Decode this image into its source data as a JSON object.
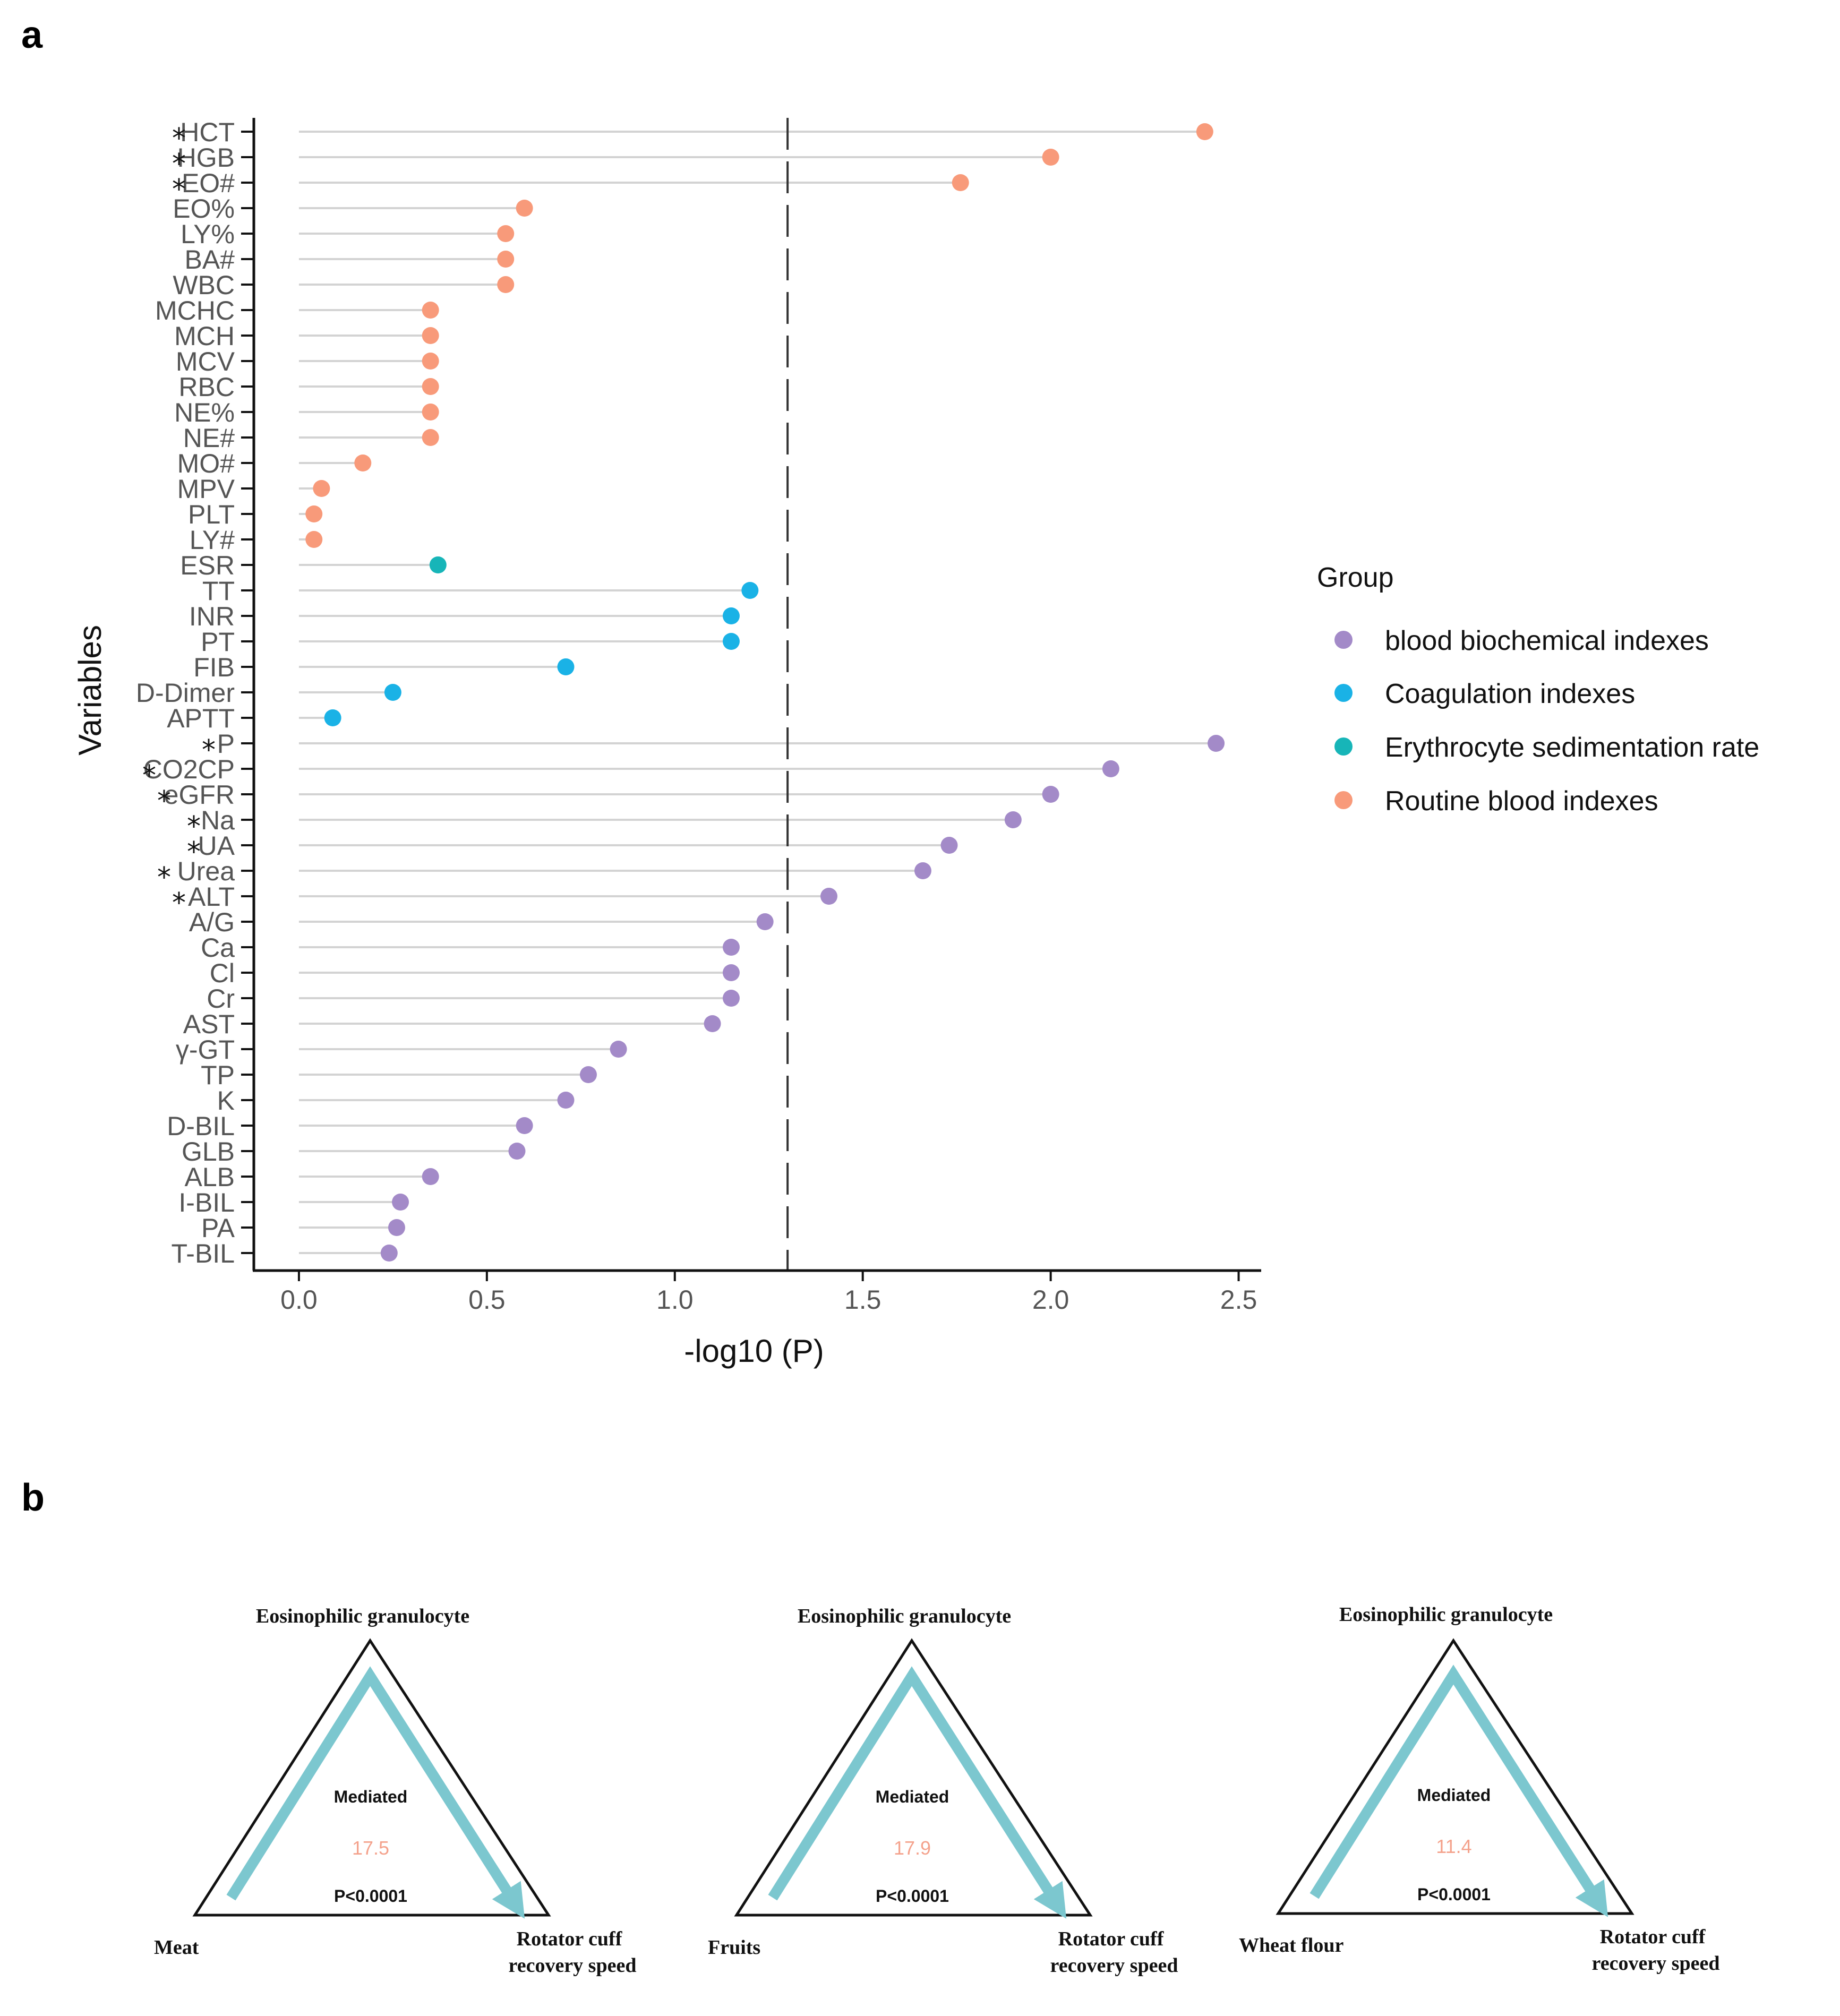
{
  "panels": {
    "a": "a",
    "b": "b"
  },
  "chart_data": {
    "type": "scatter",
    "subtype": "lollipop",
    "xlabel": "-log10 (P)",
    "ylabel": "Variables",
    "xlim": [
      -0.12,
      2.56
    ],
    "xticks": [
      0.0,
      0.5,
      1.0,
      1.5,
      2.0,
      2.5
    ],
    "xtick_labels": [
      "0.0",
      "0.5",
      "1.0",
      "1.5",
      "2.0",
      "2.5"
    ],
    "threshold": 1.3,
    "legend": {
      "title": "Group",
      "placement": "right",
      "entries": [
        {
          "name": "blood biochemical indexes",
          "color": "#a38ac8"
        },
        {
          "name": "Coagulation indexes",
          "color": "#1ab2e6"
        },
        {
          "name": "Erythrocyte sedimentation rate",
          "color": "#17b5b8"
        },
        {
          "name": "Routine blood indexes",
          "color": "#f89a7a"
        }
      ]
    },
    "points": [
      {
        "label": "HCT",
        "value": 2.41,
        "group": "Routine blood indexes",
        "star": true
      },
      {
        "label": "HGB",
        "value": 2.0,
        "group": "Routine blood indexes",
        "star": true
      },
      {
        "label": "EO#",
        "value": 1.76,
        "group": "Routine blood indexes",
        "star": true
      },
      {
        "label": "EO%",
        "value": 0.6,
        "group": "Routine blood indexes",
        "star": false
      },
      {
        "label": "LY%",
        "value": 0.55,
        "group": "Routine blood indexes",
        "star": false
      },
      {
        "label": "BA#",
        "value": 0.55,
        "group": "Routine blood indexes",
        "star": false
      },
      {
        "label": "WBC",
        "value": 0.55,
        "group": "Routine blood indexes",
        "star": false
      },
      {
        "label": "MCHC",
        "value": 0.35,
        "group": "Routine blood indexes",
        "star": false
      },
      {
        "label": "MCH",
        "value": 0.35,
        "group": "Routine blood indexes",
        "star": false
      },
      {
        "label": "MCV",
        "value": 0.35,
        "group": "Routine blood indexes",
        "star": false
      },
      {
        "label": "RBC",
        "value": 0.35,
        "group": "Routine blood indexes",
        "star": false
      },
      {
        "label": "NE%",
        "value": 0.35,
        "group": "Routine blood indexes",
        "star": false
      },
      {
        "label": "NE#",
        "value": 0.35,
        "group": "Routine blood indexes",
        "star": false
      },
      {
        "label": "MO#",
        "value": 0.17,
        "group": "Routine blood indexes",
        "star": false
      },
      {
        "label": "MPV",
        "value": 0.06,
        "group": "Routine blood indexes",
        "star": false
      },
      {
        "label": "PLT",
        "value": 0.04,
        "group": "Routine blood indexes",
        "star": false
      },
      {
        "label": "LY#",
        "value": 0.04,
        "group": "Routine blood indexes",
        "star": false
      },
      {
        "label": "ESR",
        "value": 0.37,
        "group": "Erythrocyte sedimentation rate",
        "star": false
      },
      {
        "label": "TT",
        "value": 1.2,
        "group": "Coagulation indexes",
        "star": false
      },
      {
        "label": "INR",
        "value": 1.15,
        "group": "Coagulation indexes",
        "star": false
      },
      {
        "label": "PT",
        "value": 1.15,
        "group": "Coagulation indexes",
        "star": false
      },
      {
        "label": "FIB",
        "value": 0.71,
        "group": "Coagulation indexes",
        "star": false
      },
      {
        "label": "D-Dimer",
        "value": 0.25,
        "group": "Coagulation indexes",
        "star": false
      },
      {
        "label": "APTT",
        "value": 0.09,
        "group": "Coagulation indexes",
        "star": false
      },
      {
        "label": "P",
        "value": 2.44,
        "group": "blood biochemical indexes",
        "star": true
      },
      {
        "label": "CO2CP",
        "value": 2.16,
        "group": "blood biochemical indexes",
        "star": true
      },
      {
        "label": "eGFR",
        "value": 2.0,
        "group": "blood biochemical indexes",
        "star": true
      },
      {
        "label": "Na",
        "value": 1.9,
        "group": "blood biochemical indexes",
        "star": true
      },
      {
        "label": "UA",
        "value": 1.73,
        "group": "blood biochemical indexes",
        "star": true
      },
      {
        "label": "Urea",
        "value": 1.66,
        "group": "blood biochemical indexes",
        "star": true
      },
      {
        "label": "ALT",
        "value": 1.41,
        "group": "blood biochemical indexes",
        "star": true
      },
      {
        "label": "A/G",
        "value": 1.24,
        "group": "blood biochemical indexes",
        "star": false
      },
      {
        "label": "Ca",
        "value": 1.15,
        "group": "blood biochemical indexes",
        "star": false
      },
      {
        "label": "Cl",
        "value": 1.15,
        "group": "blood biochemical indexes",
        "star": false
      },
      {
        "label": "Cr",
        "value": 1.15,
        "group": "blood biochemical indexes",
        "star": false
      },
      {
        "label": "AST",
        "value": 1.1,
        "group": "blood biochemical indexes",
        "star": false
      },
      {
        "label": "γ-GT",
        "value": 0.85,
        "group": "blood biochemical indexes",
        "star": false
      },
      {
        "label": "TP",
        "value": 0.77,
        "group": "blood biochemical indexes",
        "star": false
      },
      {
        "label": "K",
        "value": 0.71,
        "group": "blood biochemical indexes",
        "star": false
      },
      {
        "label": "D-BIL",
        "value": 0.6,
        "group": "blood biochemical indexes",
        "star": false
      },
      {
        "label": "GLB",
        "value": 0.58,
        "group": "blood biochemical indexes",
        "star": false
      },
      {
        "label": "ALB",
        "value": 0.35,
        "group": "blood biochemical indexes",
        "star": false
      },
      {
        "label": "I-BIL",
        "value": 0.27,
        "group": "blood biochemical indexes",
        "star": false
      },
      {
        "label": "PA",
        "value": 0.26,
        "group": "blood biochemical indexes",
        "star": false
      },
      {
        "label": "T-BIL",
        "value": 0.24,
        "group": "blood biochemical indexes",
        "star": false
      }
    ]
  },
  "mediation": {
    "star_symbol": "*",
    "arrow_color": "#7cc7cf",
    "triangles": [
      {
        "top": "Eosinophilic granulocyte",
        "left": "Meat",
        "right_line1": "Rotator cuff",
        "right_line2": "recovery speed",
        "mediated_label": "Mediated",
        "value": "17.5",
        "p": "P<0.0001"
      },
      {
        "top": "Eosinophilic granulocyte",
        "left": "Fruits",
        "right_line1": "Rotator cuff",
        "right_line2": "recovery speed",
        "mediated_label": "Mediated",
        "value": "17.9",
        "p": "P<0.0001"
      },
      {
        "top": "Eosinophilic granulocyte",
        "left": "Wheat flour",
        "right_line1": "Rotator cuff",
        "right_line2": "recovery speed",
        "mediated_label": "Mediated",
        "value": "11.4",
        "p": "P<0.0001"
      }
    ]
  }
}
